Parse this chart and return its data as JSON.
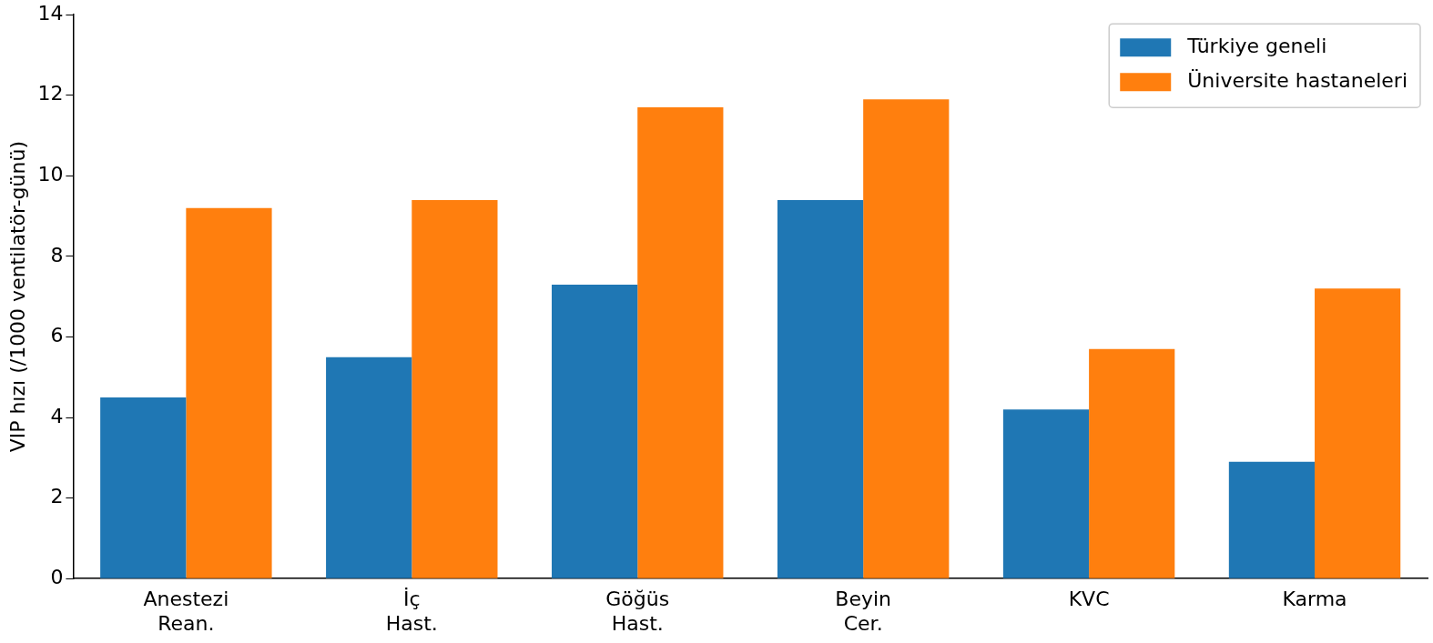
{
  "chart_data": {
    "type": "bar",
    "ylabel": "VIP hızı (/1000 ventilatör-günü)",
    "categories": [
      "Anestezi Rean.",
      "İç Hast.",
      "Göğüs Hast.",
      "Beyin Cer.",
      "KVC",
      "Karma"
    ],
    "series": [
      {
        "name": "Türkiye geneli",
        "color": "#1f77b4",
        "values": [
          4.5,
          5.5,
          7.3,
          9.4,
          4.2,
          2.9
        ]
      },
      {
        "name": "Üniversite hastaneleri",
        "color": "#ff7f0e",
        "values": [
          9.2,
          9.4,
          11.7,
          11.9,
          5.7,
          7.2
        ]
      }
    ],
    "ylim": [
      0,
      14
    ],
    "yticks": [
      0,
      2,
      4,
      6,
      8,
      10,
      12,
      14
    ],
    "grid": false,
    "legend": "top right"
  }
}
